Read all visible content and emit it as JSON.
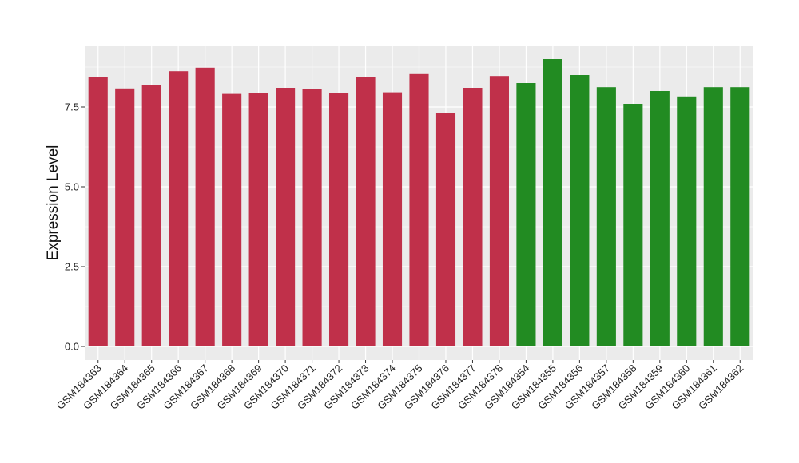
{
  "chart_data": {
    "type": "bar",
    "ylabel": "Expression Level",
    "xlabel": "",
    "ylim": [
      0,
      9.35
    ],
    "y_ticks": [
      "0.0",
      "2.5",
      "5.0",
      "7.5"
    ],
    "y_tick_values": [
      0,
      2.5,
      5,
      7.5
    ],
    "grid": true,
    "categories": [
      "GSM184363",
      "GSM184364",
      "GSM184365",
      "GSM184366",
      "GSM184367",
      "GSM184368",
      "GSM184369",
      "GSM184370",
      "GSM184371",
      "GSM184372",
      "GSM184373",
      "GSM184374",
      "GSM184375",
      "GSM184376",
      "GSM184377",
      "GSM184378",
      "GSM184354",
      "GSM184355",
      "GSM184356",
      "GSM184357",
      "GSM184358",
      "GSM184359",
      "GSM184360",
      "GSM184361",
      "GSM184362"
    ],
    "values": [
      8.45,
      8.08,
      8.18,
      8.62,
      8.73,
      7.91,
      7.93,
      8.1,
      8.05,
      7.93,
      8.45,
      7.96,
      8.53,
      7.3,
      8.1,
      8.47,
      8.25,
      9.0,
      8.5,
      8.12,
      7.6,
      8.0,
      7.83,
      8.12,
      8.12
    ],
    "groups": [
      "g1",
      "g1",
      "g1",
      "g1",
      "g1",
      "g1",
      "g1",
      "g1",
      "g1",
      "g1",
      "g1",
      "g1",
      "g1",
      "g1",
      "g1",
      "g1",
      "g2",
      "g2",
      "g2",
      "g2",
      "g2",
      "g2",
      "g2",
      "g2",
      "g2"
    ],
    "colors": {
      "g1": "#c0304a",
      "g2": "#228b22"
    },
    "panel_background": "#ebebeb",
    "grid_color": "#ffffff"
  }
}
